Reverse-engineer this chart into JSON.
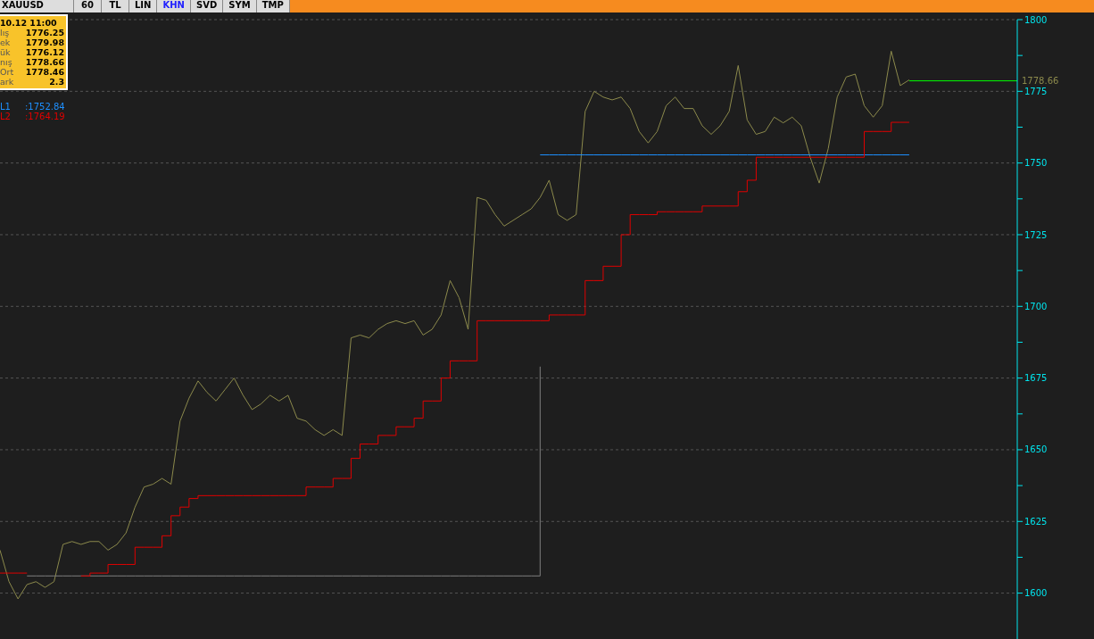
{
  "chart_data": {
    "type": "line",
    "title": "XAUUSD",
    "annotations": [
      "60",
      "TL",
      "LIN",
      "KHN",
      "SVD",
      "SYM",
      "TMP",
      "10.12 11:00",
      "lış",
      "1776.25",
      "ek",
      "1779.98",
      "ük",
      "1776.12",
      "nış",
      "1778.66",
      "Ort",
      "1778.46",
      "ark",
      "2.3",
      ":1752.84",
      ":1764.19"
    ],
    "categories": [
      null,
      null,
      null,
      null,
      null,
      null,
      null,
      null,
      null,
      null,
      null,
      null,
      null,
      null,
      null,
      null,
      null,
      null,
      null,
      null,
      null,
      null,
      null,
      null,
      null,
      null,
      null,
      null,
      null,
      null,
      null,
      null,
      null,
      null,
      null,
      null,
      null,
      null,
      null,
      null,
      null,
      null,
      null,
      null,
      null,
      null,
      null,
      null,
      null,
      null,
      null,
      null,
      null,
      null,
      null,
      null,
      null,
      null,
      null,
      null,
      null,
      null,
      null,
      null,
      null,
      null,
      null,
      null,
      null,
      null,
      null,
      null,
      null,
      null,
      null,
      null,
      null,
      null,
      null,
      null,
      null,
      null,
      null,
      null,
      null,
      null,
      null,
      null,
      null,
      null,
      null,
      null,
      null,
      null,
      null,
      null,
      null,
      null,
      null,
      null,
      null,
      null,
      null,
      null,
      null,
      null,
      null,
      null,
      null,
      null,
      null,
      null,
      null,
      null
    ],
    "series": [
      {
        "type": "line",
        "color": "#8c8a4c",
        "values": [
          1615,
          1604,
          1598,
          1603,
          1604,
          1602,
          1604,
          1617,
          1618,
          1617,
          1618,
          1618,
          1615,
          1617,
          1621,
          1630,
          1637,
          1638,
          1640,
          1638,
          1660,
          1668,
          1674,
          1670,
          1667,
          1671,
          1675,
          1669,
          1664,
          1666,
          1669,
          1667,
          1669,
          1661,
          1660,
          1657,
          1655,
          1657,
          1655,
          1689,
          1690,
          1689,
          1692,
          1694,
          1695,
          1694,
          1695,
          1690,
          1692,
          1697,
          1709,
          1703,
          1692,
          1738,
          1737,
          1732,
          1728,
          1730,
          1732,
          1734,
          1738,
          1744,
          1732,
          1730,
          1732,
          1768,
          1775,
          1773,
          1772,
          1773,
          1769,
          1761,
          1757,
          1761,
          1770,
          1773,
          1769,
          1769,
          1763,
          1760,
          1763,
          1768,
          1784,
          1765,
          1760,
          1761,
          1766,
          1764,
          1766,
          1763,
          1752,
          1743,
          1755,
          1773,
          1780,
          1781,
          1770,
          1766,
          1770,
          1789,
          1777,
          1779,
          null,
          null,
          null,
          null,
          null,
          null,
          null,
          null,
          null,
          null,
          null,
          null
        ]
      },
      {
        "type": "step",
        "color": "#7f7f7f",
        "values": [
          null,
          null,
          null,
          1606,
          1606,
          1606,
          1606,
          1606,
          1606,
          1606,
          1606,
          1606,
          1606,
          1606,
          1606,
          1606,
          1606,
          1606,
          1606,
          1606,
          1606,
          1606,
          1606,
          1606,
          1606,
          1606,
          1606,
          1606,
          1606,
          1606,
          1606,
          1606,
          1606,
          1606,
          1606,
          1606,
          1606,
          1606,
          1606,
          1606,
          1606,
          1606,
          1606,
          1606,
          1606,
          1606,
          1606,
          1606,
          1606,
          1606,
          1606,
          1606,
          1606,
          1606,
          1606,
          1606,
          1606,
          1606,
          1606,
          1606,
          1679,
          null,
          null,
          null,
          null,
          null,
          null,
          null,
          null,
          null,
          null,
          null,
          null,
          null,
          null,
          null,
          null,
          null,
          null,
          null,
          null,
          null,
          null,
          null,
          null,
          null,
          null,
          null,
          null,
          null,
          null,
          null,
          null,
          null,
          null,
          null,
          null,
          null,
          null,
          null,
          null,
          null,
          null,
          null,
          null,
          null,
          null,
          null,
          null,
          null,
          null,
          null,
          null,
          null
        ]
      },
      {
        "type": "step",
        "name": "L1",
        "color": "#1e90ff",
        "values": [
          null,
          null,
          null,
          null,
          null,
          null,
          null,
          null,
          null,
          null,
          null,
          null,
          null,
          null,
          null,
          null,
          null,
          null,
          null,
          null,
          null,
          null,
          null,
          null,
          null,
          null,
          null,
          null,
          null,
          null,
          null,
          null,
          null,
          null,
          null,
          null,
          null,
          null,
          null,
          null,
          null,
          null,
          null,
          null,
          null,
          null,
          null,
          null,
          null,
          null,
          null,
          null,
          null,
          null,
          null,
          null,
          null,
          null,
          null,
          null,
          1752.84,
          1752.84,
          1752.84,
          1752.84,
          1752.84,
          1752.84,
          1752.84,
          1752.84,
          1752.84,
          1752.84,
          1752.84,
          1752.84,
          1752.84,
          1752.84,
          1752.84,
          1752.84,
          1752.84,
          1752.84,
          1752.84,
          1752.84,
          1752.84,
          1752.84,
          1752.84,
          1752.84,
          1752.84,
          1752.84,
          1752.84,
          1752.84,
          1752.84,
          1752.84,
          1752.84,
          1752.84,
          1752.84,
          1752.84,
          1752.84,
          1752.84,
          1752.84,
          1752.84,
          1752.84,
          1752.84,
          1752.84,
          1752.84,
          null,
          null,
          null,
          null,
          null,
          null,
          null,
          null,
          null,
          null,
          null,
          null
        ]
      },
      {
        "type": "step",
        "name": "L2",
        "color": "#e00000",
        "values": [
          1607,
          1607,
          1607,
          1607,
          null,
          null,
          null,
          null,
          null,
          1606,
          1607,
          1607,
          1610,
          1610,
          1610,
          1616,
          1616,
          1616,
          1620,
          1627,
          1630,
          1633,
          1634,
          1634,
          1634,
          1634,
          1634,
          1634,
          1634,
          1634,
          1634,
          1634,
          1634,
          1634,
          1637,
          1637,
          1637,
          1640,
          1640,
          1647,
          1652,
          1652,
          1655,
          1655,
          1658,
          1658,
          1661,
          1667,
          1667,
          1675,
          1681,
          1681,
          1681,
          1695,
          1695,
          1695,
          1695,
          1695,
          1695,
          1695,
          1695,
          1697,
          1697,
          1697,
          1697,
          1709,
          1709,
          1714,
          1714,
          1725,
          1732,
          1732,
          1732,
          1733,
          1733,
          1733,
          1733,
          1733,
          1735,
          1735,
          1735,
          1735,
          1740,
          1744,
          1752,
          1752,
          1752,
          1752,
          1752,
          1752,
          1752,
          1752,
          1752,
          1752,
          1752,
          1752,
          1761,
          1761,
          1761,
          1764.19,
          1764.19,
          1764.19,
          null,
          null,
          null,
          null,
          null,
          null,
          null,
          null,
          null,
          null,
          null,
          null
        ]
      }
    ],
    "ylim": [
      1584,
      1800
    ],
    "yticks": [
      1600,
      {
        "value": 1612.5,
        "label": null
      },
      1625,
      {
        "value": 1637.5,
        "label": null
      },
      1650,
      {
        "value": 1662.5,
        "label": null
      },
      1675,
      {
        "value": 1687.5,
        "label": null
      },
      1700,
      {
        "value": 1712.5,
        "label": null
      },
      1725,
      {
        "value": 1737.5,
        "label": null
      },
      1750,
      {
        "value": 1762.5,
        "label": null
      },
      1775,
      {
        "value": 1787.5,
        "label": null
      },
      1800
    ],
    "ref_lines": [
      {
        "axis": "y",
        "value": 1778.66,
        "label": "1778.66",
        "color": "#00ff00"
      }
    ],
    "grid": "y",
    "legend": "top left",
    "tick_labels": "y",
    "line_style": "solid",
    "marker": "none"
  }
}
